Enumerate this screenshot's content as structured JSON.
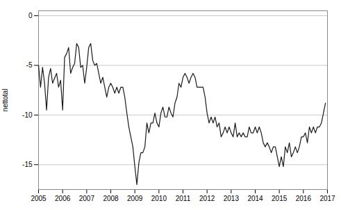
{
  "chart_data": {
    "type": "line",
    "ylabel": "nettotal",
    "x": [
      2005.0,
      2005.083,
      2005.167,
      2005.25,
      2005.333,
      2005.417,
      2005.5,
      2005.583,
      2005.667,
      2005.75,
      2005.833,
      2005.917,
      2006.0,
      2006.083,
      2006.167,
      2006.25,
      2006.333,
      2006.417,
      2006.5,
      2006.583,
      2006.667,
      2006.75,
      2006.833,
      2006.917,
      2007.0,
      2007.083,
      2007.167,
      2007.25,
      2007.333,
      2007.417,
      2007.5,
      2007.583,
      2007.667,
      2007.75,
      2007.833,
      2007.917,
      2008.0,
      2008.083,
      2008.167,
      2008.25,
      2008.333,
      2008.417,
      2008.5,
      2008.583,
      2008.667,
      2008.75,
      2008.833,
      2008.917,
      2009.0,
      2009.083,
      2009.167,
      2009.25,
      2009.333,
      2009.417,
      2009.5,
      2009.583,
      2009.667,
      2009.75,
      2009.833,
      2009.917,
      2010.0,
      2010.083,
      2010.167,
      2010.25,
      2010.333,
      2010.417,
      2010.5,
      2010.583,
      2010.667,
      2010.75,
      2010.833,
      2010.917,
      2011.0,
      2011.083,
      2011.167,
      2011.25,
      2011.333,
      2011.417,
      2011.5,
      2011.583,
      2011.667,
      2011.75,
      2011.833,
      2011.917,
      2012.0,
      2012.083,
      2012.167,
      2012.25,
      2012.333,
      2012.417,
      2012.5,
      2012.583,
      2012.667,
      2012.75,
      2012.833,
      2012.917,
      2013.0,
      2013.083,
      2013.167,
      2013.25,
      2013.333,
      2013.417,
      2013.5,
      2013.583,
      2013.667,
      2013.75,
      2013.833,
      2013.917,
      2014.0,
      2014.083,
      2014.167,
      2014.25,
      2014.333,
      2014.417,
      2014.5,
      2014.583,
      2014.667,
      2014.75,
      2014.833,
      2014.917,
      2015.0,
      2015.083,
      2015.167,
      2015.25,
      2015.333,
      2015.417,
      2015.5,
      2015.583,
      2015.667,
      2015.75,
      2015.833,
      2015.917,
      2016.0,
      2016.083,
      2016.167,
      2016.25,
      2016.333,
      2016.417,
      2016.5,
      2016.583,
      2016.667,
      2016.75,
      2016.833,
      2016.917
    ],
    "values": [
      -5.0,
      -7.2,
      -5.2,
      -6.8,
      -9.5,
      -6.2,
      -5.3,
      -6.8,
      -6.3,
      -5.8,
      -7.2,
      -6.5,
      -9.5,
      -4.2,
      -3.8,
      -3.2,
      -5.8,
      -5.2,
      -4.8,
      -2.8,
      -3.2,
      -5.2,
      -5.0,
      -6.8,
      -5.2,
      -3.2,
      -2.8,
      -4.5,
      -5.0,
      -4.8,
      -5.8,
      -6.8,
      -6.2,
      -7.2,
      -8.2,
      -7.2,
      -6.8,
      -7.2,
      -7.8,
      -7.2,
      -7.8,
      -7.2,
      -7.2,
      -8.2,
      -9.8,
      -11.2,
      -12.2,
      -13.2,
      -15.2,
      -17.0,
      -14.8,
      -13.8,
      -13.8,
      -13.2,
      -10.8,
      -11.8,
      -10.8,
      -10.8,
      -9.8,
      -10.8,
      -11.2,
      -9.8,
      -9.2,
      -10.2,
      -10.2,
      -9.2,
      -9.8,
      -10.2,
      -8.8,
      -8.2,
      -6.8,
      -7.2,
      -6.2,
      -5.8,
      -6.2,
      -6.8,
      -6.2,
      -5.8,
      -6.2,
      -7.2,
      -7.2,
      -7.2,
      -7.2,
      -8.2,
      -9.8,
      -10.8,
      -10.2,
      -10.8,
      -10.2,
      -11.2,
      -10.8,
      -12.2,
      -11.8,
      -11.2,
      -11.8,
      -11.2,
      -11.8,
      -12.2,
      -10.8,
      -12.2,
      -11.8,
      -12.2,
      -11.8,
      -12.2,
      -12.2,
      -11.2,
      -11.8,
      -11.8,
      -11.2,
      -11.8,
      -11.2,
      -11.8,
      -12.8,
      -13.2,
      -12.8,
      -13.2,
      -13.8,
      -13.2,
      -13.2,
      -14.2,
      -15.2,
      -14.2,
      -15.2,
      -13.2,
      -13.8,
      -12.8,
      -14.2,
      -13.8,
      -13.2,
      -13.8,
      -13.2,
      -12.2,
      -12.2,
      -11.8,
      -12.8,
      -11.2,
      -11.8,
      -11.2,
      -11.8,
      -11.2,
      -11.2,
      -10.8,
      -9.8,
      -8.8
    ],
    "color": "#1a1a1a",
    "xlim": [
      2005.0,
      2017.0
    ],
    "ylim": [
      -17.5,
      0.5
    ],
    "xticks": [
      2005,
      2006,
      2007,
      2008,
      2009,
      2010,
      2011,
      2012,
      2013,
      2014,
      2015,
      2016,
      2017
    ],
    "yticks": [
      0,
      -5,
      -10,
      -15
    ],
    "grid": true
  }
}
